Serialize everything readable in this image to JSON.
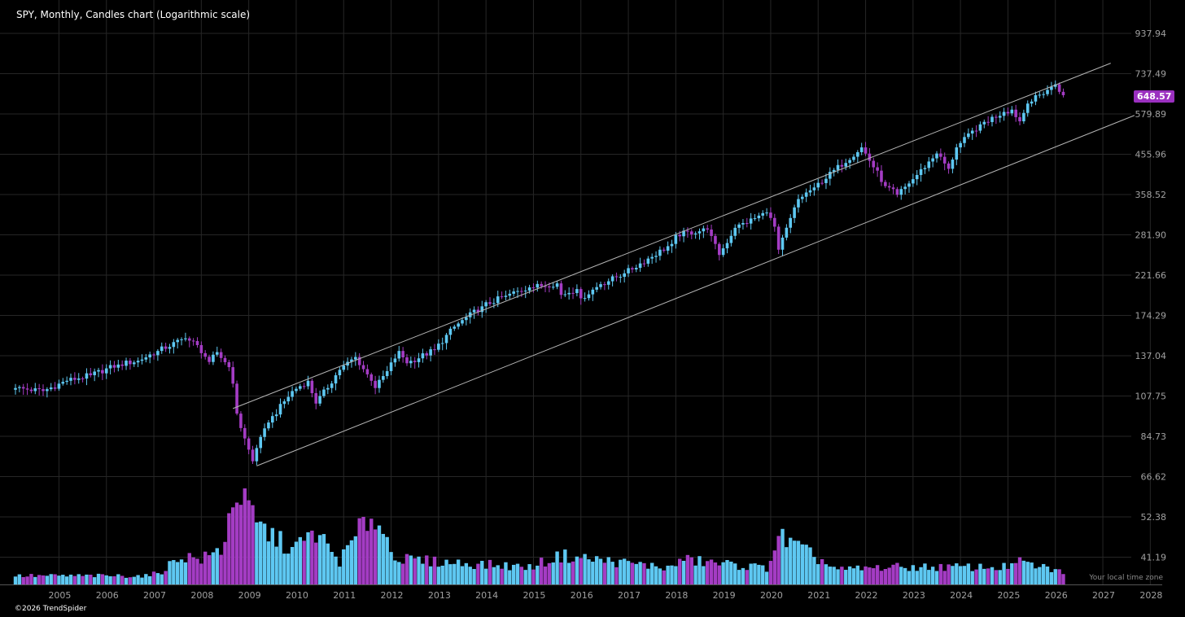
{
  "title": "SPY, Monthly, Candles chart (Logarithmic scale)",
  "copyright": "©2026 TrendSpider",
  "timezone_note": "Your local time zone",
  "last_price_label": "648.57",
  "colors": {
    "up": "#5ec8f2",
    "down": "#a43cc4",
    "grid": "#262626",
    "channel": "#b5b5b5",
    "axis_text": "#a0a0a0",
    "background": "#000000"
  },
  "chart_data": {
    "type": "candlestick",
    "symbol": "SPY",
    "interval": "Monthly",
    "yscale": "log",
    "grid": true,
    "ylim": [
      37,
      1000
    ],
    "y_ticks": [
      "937.94",
      "737.49",
      "579.89",
      "455.96",
      "358.52",
      "281.90",
      "221.66",
      "174.29",
      "137.04",
      "107.75",
      "84.73",
      "66.62",
      "52.38",
      "41.19"
    ],
    "x_ticks": [
      "2005",
      "2006",
      "2007",
      "2008",
      "2009",
      "2010",
      "2011",
      "2012",
      "2013",
      "2014",
      "2015",
      "2016",
      "2017",
      "2018",
      "2019",
      "2020",
      "2021",
      "2022",
      "2023",
      "2024",
      "2025",
      "2026",
      "2027",
      "2028"
    ],
    "last_price": 648.57,
    "close_anchors": [
      [
        "2004-02",
        113
      ],
      [
        "2004-09",
        111
      ],
      [
        "2005-03",
        118
      ],
      [
        "2005-09",
        122
      ],
      [
        "2006-04",
        130
      ],
      [
        "2006-09",
        133
      ],
      [
        "2007-02",
        141
      ],
      [
        "2007-09",
        152
      ],
      [
        "2007-12",
        146
      ],
      [
        "2008-03",
        132
      ],
      [
        "2008-05",
        140
      ],
      [
        "2008-08",
        128
      ],
      [
        "2008-09",
        116
      ],
      [
        "2008-10",
        97
      ],
      [
        "2008-11",
        89
      ],
      [
        "2009-02",
        73
      ],
      [
        "2009-03",
        79
      ],
      [
        "2009-06",
        92
      ],
      [
        "2009-12",
        111
      ],
      [
        "2010-04",
        118
      ],
      [
        "2010-06",
        103
      ],
      [
        "2010-12",
        126
      ],
      [
        "2011-04",
        136
      ],
      [
        "2011-08",
        118
      ],
      [
        "2011-09",
        113
      ],
      [
        "2011-12",
        125
      ],
      [
        "2012-03",
        141
      ],
      [
        "2012-05",
        131
      ],
      [
        "2012-12",
        142
      ],
      [
        "2013-05",
        163
      ],
      [
        "2013-12",
        184
      ],
      [
        "2014-06",
        196
      ],
      [
        "2014-12",
        206
      ],
      [
        "2015-07",
        211
      ],
      [
        "2015-08",
        197
      ],
      [
        "2015-12",
        204
      ],
      [
        "2016-01",
        193
      ],
      [
        "2016-06",
        210
      ],
      [
        "2016-12",
        224
      ],
      [
        "2017-12",
        267
      ],
      [
        "2018-01",
        282
      ],
      [
        "2018-09",
        291
      ],
      [
        "2018-12",
        250
      ],
      [
        "2019-04",
        294
      ],
      [
        "2019-12",
        322
      ],
      [
        "2020-02",
        296
      ],
      [
        "2020-03",
        258
      ],
      [
        "2020-08",
        349
      ],
      [
        "2020-12",
        374
      ],
      [
        "2021-12",
        475
      ],
      [
        "2022-06",
        377
      ],
      [
        "2022-09",
        358
      ],
      [
        "2022-12",
        383
      ],
      [
        "2023-07",
        458
      ],
      [
        "2023-10",
        418
      ],
      [
        "2023-12",
        475
      ],
      [
        "2024-06",
        545
      ],
      [
        "2024-12",
        587
      ],
      [
        "2025-02",
        595
      ],
      [
        "2025-04",
        555
      ],
      [
        "2025-06",
        617
      ],
      [
        "2025-12",
        682
      ],
      [
        "2026-01",
        692
      ],
      [
        "2026-03",
        648.57
      ]
    ],
    "volume_note": "relative monthly volume, 0-1 scale (axis unlabeled)",
    "volume_anchors": [
      [
        "2004-02",
        0.09
      ],
      [
        "2006-12",
        0.09
      ],
      [
        "2007-03",
        0.14
      ],
      [
        "2007-08",
        0.3
      ],
      [
        "2008-01",
        0.26
      ],
      [
        "2008-06",
        0.36
      ],
      [
        "2008-10",
        1.0
      ],
      [
        "2009-03",
        0.62
      ],
      [
        "2009-12",
        0.36
      ],
      [
        "2010-06",
        0.54
      ],
      [
        "2010-12",
        0.24
      ],
      [
        "2011-08",
        0.74
      ],
      [
        "2012-03",
        0.26
      ],
      [
        "2014-12",
        0.18
      ],
      [
        "2015-08",
        0.3
      ],
      [
        "2017-12",
        0.17
      ],
      [
        "2018-02",
        0.26
      ],
      [
        "2019-12",
        0.17
      ],
      [
        "2020-03",
        0.5
      ],
      [
        "2021-06",
        0.15
      ],
      [
        "2022-06",
        0.18
      ],
      [
        "2024-12",
        0.18
      ],
      [
        "2025-04",
        0.23
      ],
      [
        "2026-03",
        0.13
      ]
    ],
    "channel_lines": [
      {
        "from": [
          "2008-09",
          100
        ],
        "to": [
          "2027-03",
          785
        ]
      },
      {
        "from": [
          "2009-03",
          71
        ],
        "to": [
          "2027-09",
          575
        ]
      }
    ]
  }
}
